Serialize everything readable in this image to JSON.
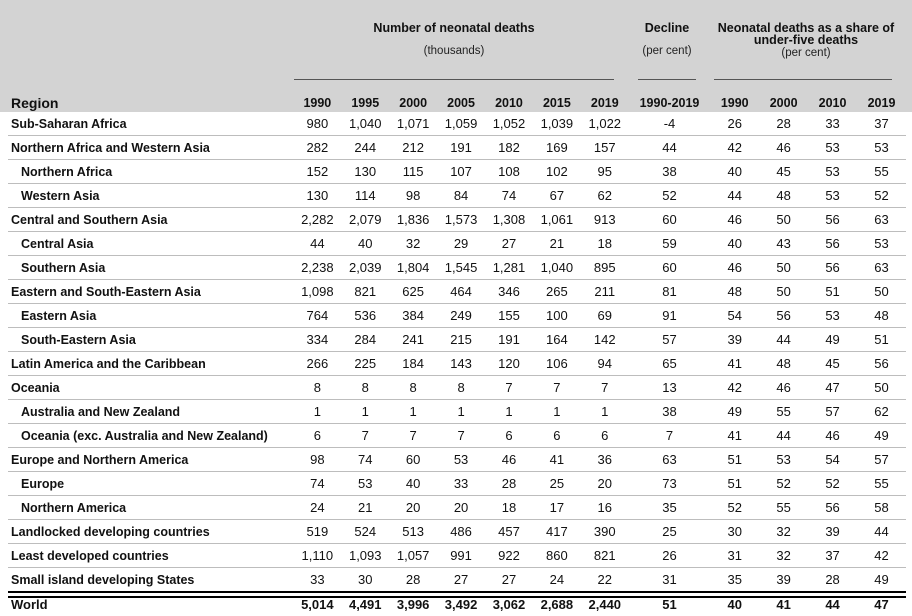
{
  "header": {
    "deaths_title": "Number of neonatal deaths",
    "deaths_sub": "(thousands)",
    "decline_title": "Decline",
    "decline_sub": "(per cent)",
    "share_title_line1": "Neonatal deaths as a share of",
    "share_title_line2": "under-five deaths",
    "share_sub": "(per cent)",
    "region_label": "Region",
    "year_cols": [
      "1990",
      "1995",
      "2000",
      "2005",
      "2010",
      "2015",
      "2019"
    ],
    "decline_col": "1990-2019",
    "share_cols": [
      "1990",
      "2000",
      "2010",
      "2019"
    ]
  },
  "rows": [
    {
      "region": "Sub-Saharan Africa",
      "sub": false,
      "deaths": [
        "980",
        "1,040",
        "1,071",
        "1,059",
        "1,052",
        "1,039",
        "1,022"
      ],
      "decline": "-4",
      "share": [
        "26",
        "28",
        "33",
        "37"
      ]
    },
    {
      "region": "Northern Africa and Western Asia",
      "sub": false,
      "deaths": [
        "282",
        "244",
        "212",
        "191",
        "182",
        "169",
        "157"
      ],
      "decline": "44",
      "share": [
        "42",
        "46",
        "53",
        "53"
      ]
    },
    {
      "region": "Northern Africa",
      "sub": true,
      "deaths": [
        "152",
        "130",
        "115",
        "107",
        "108",
        "102",
        "95"
      ],
      "decline": "38",
      "share": [
        "40",
        "45",
        "53",
        "55"
      ]
    },
    {
      "region": "Western Asia",
      "sub": true,
      "deaths": [
        "130",
        "114",
        "98",
        "84",
        "74",
        "67",
        "62"
      ],
      "decline": "52",
      "share": [
        "44",
        "48",
        "53",
        "52"
      ]
    },
    {
      "region": "Central and Southern Asia",
      "sub": false,
      "deaths": [
        "2,282",
        "2,079",
        "1,836",
        "1,573",
        "1,308",
        "1,061",
        "913"
      ],
      "decline": "60",
      "share": [
        "46",
        "50",
        "56",
        "63"
      ]
    },
    {
      "region": "Central Asia",
      "sub": true,
      "deaths": [
        "44",
        "40",
        "32",
        "29",
        "27",
        "21",
        "18"
      ],
      "decline": "59",
      "share": [
        "40",
        "43",
        "56",
        "53"
      ]
    },
    {
      "region": "Southern Asia",
      "sub": true,
      "deaths": [
        "2,238",
        "2,039",
        "1,804",
        "1,545",
        "1,281",
        "1,040",
        "895"
      ],
      "decline": "60",
      "share": [
        "46",
        "50",
        "56",
        "63"
      ]
    },
    {
      "region": "Eastern and South-Eastern Asia",
      "sub": false,
      "deaths": [
        "1,098",
        "821",
        "625",
        "464",
        "346",
        "265",
        "211"
      ],
      "decline": "81",
      "share": [
        "48",
        "50",
        "51",
        "50"
      ]
    },
    {
      "region": "Eastern Asia",
      "sub": true,
      "deaths": [
        "764",
        "536",
        "384",
        "249",
        "155",
        "100",
        "69"
      ],
      "decline": "91",
      "share": [
        "54",
        "56",
        "53",
        "48"
      ]
    },
    {
      "region": "South-Eastern Asia",
      "sub": true,
      "deaths": [
        "334",
        "284",
        "241",
        "215",
        "191",
        "164",
        "142"
      ],
      "decline": "57",
      "share": [
        "39",
        "44",
        "49",
        "51"
      ]
    },
    {
      "region": "Latin America and the Caribbean",
      "sub": false,
      "deaths": [
        "266",
        "225",
        "184",
        "143",
        "120",
        "106",
        "94"
      ],
      "decline": "65",
      "share": [
        "41",
        "48",
        "45",
        "56"
      ]
    },
    {
      "region": "Oceania",
      "sub": false,
      "deaths": [
        "8",
        "8",
        "8",
        "8",
        "7",
        "7",
        "7"
      ],
      "decline": "13",
      "share": [
        "42",
        "46",
        "47",
        "50"
      ]
    },
    {
      "region": "Australia and New Zealand",
      "sub": true,
      "deaths": [
        "1",
        "1",
        "1",
        "1",
        "1",
        "1",
        "1"
      ],
      "decline": "38",
      "share": [
        "49",
        "55",
        "57",
        "62"
      ]
    },
    {
      "region": "Oceania (exc. Australia and New Zealand)",
      "sub": true,
      "deaths": [
        "6",
        "7",
        "7",
        "7",
        "6",
        "6",
        "6"
      ],
      "decline": "7",
      "share": [
        "41",
        "44",
        "46",
        "49"
      ]
    },
    {
      "region": "Europe and Northern America",
      "sub": false,
      "deaths": [
        "98",
        "74",
        "60",
        "53",
        "46",
        "41",
        "36"
      ],
      "decline": "63",
      "share": [
        "51",
        "53",
        "54",
        "57"
      ]
    },
    {
      "region": "Europe",
      "sub": true,
      "deaths": [
        "74",
        "53",
        "40",
        "33",
        "28",
        "25",
        "20"
      ],
      "decline": "73",
      "share": [
        "51",
        "52",
        "52",
        "55"
      ]
    },
    {
      "region": "Northern America",
      "sub": true,
      "deaths": [
        "24",
        "21",
        "20",
        "20",
        "18",
        "17",
        "16"
      ],
      "decline": "35",
      "share": [
        "52",
        "55",
        "56",
        "58"
      ]
    },
    {
      "region": "Landlocked developing countries",
      "sub": false,
      "deaths": [
        "519",
        "524",
        "513",
        "486",
        "457",
        "417",
        "390"
      ],
      "decline": "25",
      "share": [
        "30",
        "32",
        "39",
        "44"
      ]
    },
    {
      "region": "Least developed countries",
      "sub": false,
      "deaths": [
        "1,110",
        "1,093",
        "1,057",
        "991",
        "922",
        "860",
        "821"
      ],
      "decline": "26",
      "share": [
        "31",
        "32",
        "37",
        "42"
      ]
    },
    {
      "region": "Small island developing States",
      "sub": false,
      "deaths": [
        "33",
        "30",
        "28",
        "27",
        "27",
        "24",
        "22"
      ],
      "decline": "31",
      "share": [
        "35",
        "39",
        "28",
        "49"
      ]
    },
    {
      "region": "World",
      "sub": false,
      "world": true,
      "deaths": [
        "5,014",
        "4,491",
        "3,996",
        "3,492",
        "3,062",
        "2,688",
        "2,440"
      ],
      "decline": "51",
      "share": [
        "40",
        "41",
        "44",
        "47"
      ]
    }
  ]
}
